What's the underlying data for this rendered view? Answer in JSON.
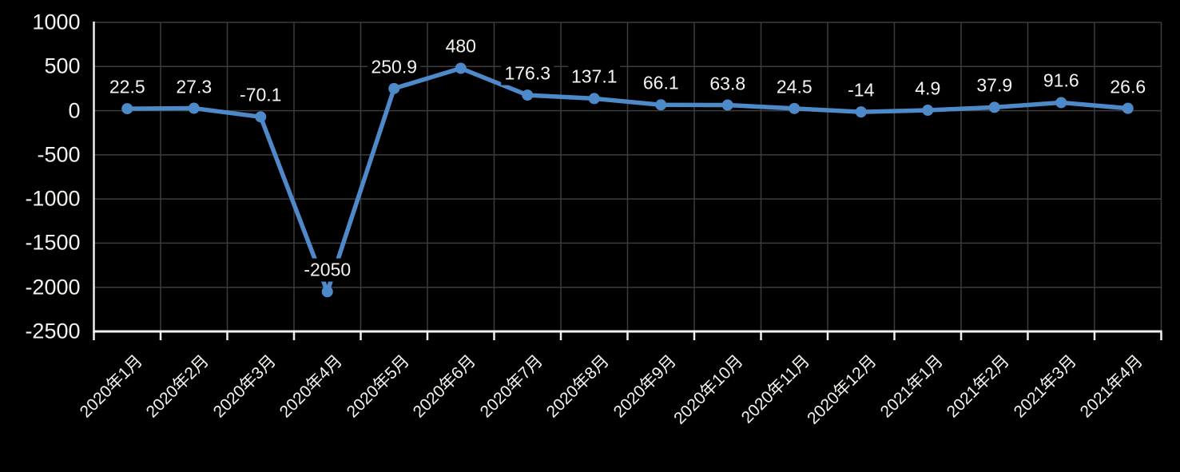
{
  "chart_data": {
    "type": "line",
    "title": "",
    "xlabel": "",
    "ylabel": "",
    "categories": [
      "2020年1月",
      "2020年2月",
      "2020年3月",
      "2020年4月",
      "2020年5月",
      "2020年6月",
      "2020年7月",
      "2020年8月",
      "2020年9月",
      "2020年10月",
      "2020年11月",
      "2020年12月",
      "2021年1月",
      "2021年2月",
      "2021年3月",
      "2021年4月"
    ],
    "series": [
      {
        "name": "",
        "values": [
          22.5,
          27.3,
          -70.1,
          -2050,
          250.9,
          480,
          176.3,
          137.1,
          66.1,
          63.8,
          24.5,
          -14,
          4.9,
          37.9,
          91.6,
          26.6
        ],
        "data_labels": [
          "22.5",
          "27.3",
          "-70.1",
          "-2050",
          "250.9",
          "480",
          "176.3",
          "137.1",
          "66.1",
          "63.8",
          "24.5",
          "-14",
          "4.9",
          "37.9",
          "91.6",
          "26.6"
        ]
      }
    ],
    "ylim": [
      -2500,
      1000
    ],
    "ytick_interval": 500,
    "yticks": [
      "1000",
      "500",
      "0",
      "-500",
      "-1000",
      "-1500",
      "-2000",
      "-2500"
    ],
    "grid": true,
    "legend_position": "none",
    "data_labels_visible": true,
    "x_label_rotation_deg": 45,
    "colors": {
      "background": "#000000",
      "line": "#4e8ac9",
      "marker": "#4e8ac9",
      "gridline": "#3c3c3c",
      "axis": "#f0f0f0",
      "text": "#f4f2ee"
    }
  }
}
